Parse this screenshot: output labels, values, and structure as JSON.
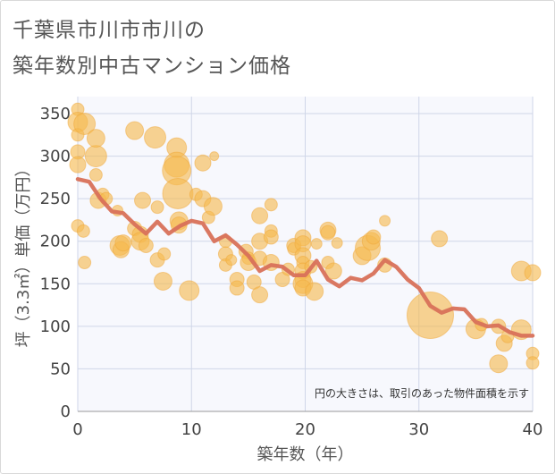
{
  "title_line1": "千葉県市川市市川の",
  "title_line2": "築年数別中古マンション価格",
  "note": "円の大きさは、取引のあった物件面積を示す",
  "colors": {
    "bubble_fill": "#f5b94f",
    "bubble_stroke": "#f0a83a",
    "line": "#d8715a",
    "grid": "#cfd6e8",
    "plot_bg": "#f7f8fd"
  },
  "chart_data": {
    "type": "scatter",
    "xlabel": "築年数（年）",
    "ylabel": "坪（3.3㎡）単価（万円）",
    "xlim": [
      0,
      40
    ],
    "ylim": [
      0,
      370
    ],
    "xticks": [
      0,
      10,
      20,
      30,
      40
    ],
    "yticks": [
      0,
      50,
      100,
      150,
      200,
      250,
      300,
      350
    ],
    "grid": true,
    "bubbles": [
      {
        "x": 0,
        "y": 355,
        "s": 7
      },
      {
        "x": 0,
        "y": 340,
        "s": 11
      },
      {
        "x": 0,
        "y": 325,
        "s": 7
      },
      {
        "x": 0,
        "y": 305,
        "s": 8
      },
      {
        "x": 0,
        "y": 290,
        "s": 9
      },
      {
        "x": 0,
        "y": 218,
        "s": 7
      },
      {
        "x": 0.5,
        "y": 212,
        "s": 7
      },
      {
        "x": 0.6,
        "y": 338,
        "s": 12
      },
      {
        "x": 0.6,
        "y": 175,
        "s": 7
      },
      {
        "x": 1.6,
        "y": 300,
        "s": 12
      },
      {
        "x": 1.6,
        "y": 321,
        "s": 10
      },
      {
        "x": 1.6,
        "y": 278,
        "s": 7
      },
      {
        "x": 1.8,
        "y": 248,
        "s": 9
      },
      {
        "x": 2.2,
        "y": 255,
        "s": 7
      },
      {
        "x": 2.5,
        "y": 250,
        "s": 7
      },
      {
        "x": 3.5,
        "y": 236,
        "s": 6
      },
      {
        "x": 3.7,
        "y": 195,
        "s": 11
      },
      {
        "x": 3.8,
        "y": 190,
        "s": 9
      },
      {
        "x": 4,
        "y": 198,
        "s": 9
      },
      {
        "x": 5,
        "y": 330,
        "s": 10
      },
      {
        "x": 5,
        "y": 215,
        "s": 8
      },
      {
        "x": 5.5,
        "y": 208,
        "s": 9
      },
      {
        "x": 5.5,
        "y": 200,
        "s": 10
      },
      {
        "x": 5.7,
        "y": 248,
        "s": 9
      },
      {
        "x": 6,
        "y": 195,
        "s": 8
      },
      {
        "x": 6.8,
        "y": 322,
        "s": 12
      },
      {
        "x": 7,
        "y": 178,
        "s": 8
      },
      {
        "x": 7,
        "y": 240,
        "s": 7
      },
      {
        "x": 7.5,
        "y": 153,
        "s": 10
      },
      {
        "x": 7.6,
        "y": 185,
        "s": 7
      },
      {
        "x": 8.7,
        "y": 310,
        "s": 11
      },
      {
        "x": 8.7,
        "y": 290,
        "s": 14
      },
      {
        "x": 8.7,
        "y": 283,
        "s": 16
      },
      {
        "x": 8.8,
        "y": 256,
        "s": 17
      },
      {
        "x": 8.9,
        "y": 224,
        "s": 10
      },
      {
        "x": 8.9,
        "y": 219,
        "s": 9
      },
      {
        "x": 9.8,
        "y": 142,
        "s": 11
      },
      {
        "x": 10.4,
        "y": 255,
        "s": 7
      },
      {
        "x": 11,
        "y": 292,
        "s": 9
      },
      {
        "x": 11,
        "y": 250,
        "s": 9
      },
      {
        "x": 11.5,
        "y": 228,
        "s": 7
      },
      {
        "x": 11.9,
        "y": 241,
        "s": 10
      },
      {
        "x": 12,
        "y": 300,
        "s": 5
      },
      {
        "x": 13,
        "y": 200,
        "s": 7
      },
      {
        "x": 13,
        "y": 185,
        "s": 8
      },
      {
        "x": 13,
        "y": 172,
        "s": 7
      },
      {
        "x": 13.5,
        "y": 178,
        "s": 6
      },
      {
        "x": 14,
        "y": 155,
        "s": 8
      },
      {
        "x": 14,
        "y": 145,
        "s": 8
      },
      {
        "x": 14.8,
        "y": 188,
        "s": 8
      },
      {
        "x": 15,
        "y": 180,
        "s": 7
      },
      {
        "x": 15,
        "y": 175,
        "s": 9
      },
      {
        "x": 15.5,
        "y": 152,
        "s": 8
      },
      {
        "x": 16,
        "y": 230,
        "s": 9
      },
      {
        "x": 16,
        "y": 200,
        "s": 9
      },
      {
        "x": 16,
        "y": 180,
        "s": 8
      },
      {
        "x": 16,
        "y": 137,
        "s": 9
      },
      {
        "x": 17,
        "y": 243,
        "s": 7
      },
      {
        "x": 17,
        "y": 212,
        "s": 7
      },
      {
        "x": 17,
        "y": 205,
        "s": 8
      },
      {
        "x": 17,
        "y": 175,
        "s": 9
      },
      {
        "x": 18,
        "y": 155,
        "s": 8
      },
      {
        "x": 18.5,
        "y": 167,
        "s": 7
      },
      {
        "x": 19,
        "y": 195,
        "s": 8
      },
      {
        "x": 19,
        "y": 191,
        "s": 7
      },
      {
        "x": 19.8,
        "y": 204,
        "s": 9
      },
      {
        "x": 19.8,
        "y": 197,
        "s": 9
      },
      {
        "x": 19.8,
        "y": 183,
        "s": 9
      },
      {
        "x": 19.8,
        "y": 175,
        "s": 7
      },
      {
        "x": 19.8,
        "y": 165,
        "s": 9
      },
      {
        "x": 19.8,
        "y": 155,
        "s": 9
      },
      {
        "x": 19.8,
        "y": 150,
        "s": 11
      },
      {
        "x": 19.8,
        "y": 145,
        "s": 9
      },
      {
        "x": 20.5,
        "y": 170,
        "s": 7
      },
      {
        "x": 20.8,
        "y": 141,
        "s": 10
      },
      {
        "x": 21,
        "y": 197,
        "s": 6
      },
      {
        "x": 22,
        "y": 213,
        "s": 9
      },
      {
        "x": 22,
        "y": 210,
        "s": 8
      },
      {
        "x": 22,
        "y": 175,
        "s": 7
      },
      {
        "x": 22.5,
        "y": 165,
        "s": 9
      },
      {
        "x": 22.8,
        "y": 198,
        "s": 6
      },
      {
        "x": 25,
        "y": 183,
        "s": 10
      },
      {
        "x": 25.5,
        "y": 192,
        "s": 14
      },
      {
        "x": 25.8,
        "y": 200,
        "s": 10
      },
      {
        "x": 26,
        "y": 205,
        "s": 8
      },
      {
        "x": 27,
        "y": 224,
        "s": 6
      },
      {
        "x": 27,
        "y": 172,
        "s": 8
      },
      {
        "x": 31,
        "y": 113,
        "s": 26
      },
      {
        "x": 31.8,
        "y": 203,
        "s": 9
      },
      {
        "x": 35,
        "y": 97,
        "s": 11
      },
      {
        "x": 35.5,
        "y": 102,
        "s": 7
      },
      {
        "x": 37,
        "y": 56,
        "s": 10
      },
      {
        "x": 37,
        "y": 100,
        "s": 8
      },
      {
        "x": 37.5,
        "y": 80,
        "s": 9
      },
      {
        "x": 37.8,
        "y": 88,
        "s": 7
      },
      {
        "x": 39,
        "y": 165,
        "s": 11
      },
      {
        "x": 39,
        "y": 96,
        "s": 11
      },
      {
        "x": 40,
        "y": 163,
        "s": 9
      },
      {
        "x": 40,
        "y": 68,
        "s": 7
      },
      {
        "x": 40,
        "y": 57,
        "s": 7
      }
    ],
    "line": {
      "x": [
        0,
        1,
        2,
        3,
        4,
        5,
        6,
        7,
        8,
        9,
        10,
        11,
        12,
        13,
        14,
        15,
        16,
        17,
        18,
        19,
        20,
        21,
        22,
        23,
        24,
        25,
        26,
        27,
        28,
        29,
        30,
        31,
        32,
        33,
        34,
        35,
        36,
        37,
        38,
        39,
        40
      ],
      "y": [
        273,
        270,
        250,
        235,
        233,
        220,
        209,
        223,
        209,
        218,
        224,
        221,
        200,
        207,
        196,
        183,
        165,
        172,
        170,
        160,
        160,
        177,
        155,
        147,
        157,
        154,
        162,
        178,
        170,
        155,
        145,
        124,
        116,
        121,
        120,
        105,
        100,
        101,
        93,
        89,
        89
      ]
    }
  }
}
